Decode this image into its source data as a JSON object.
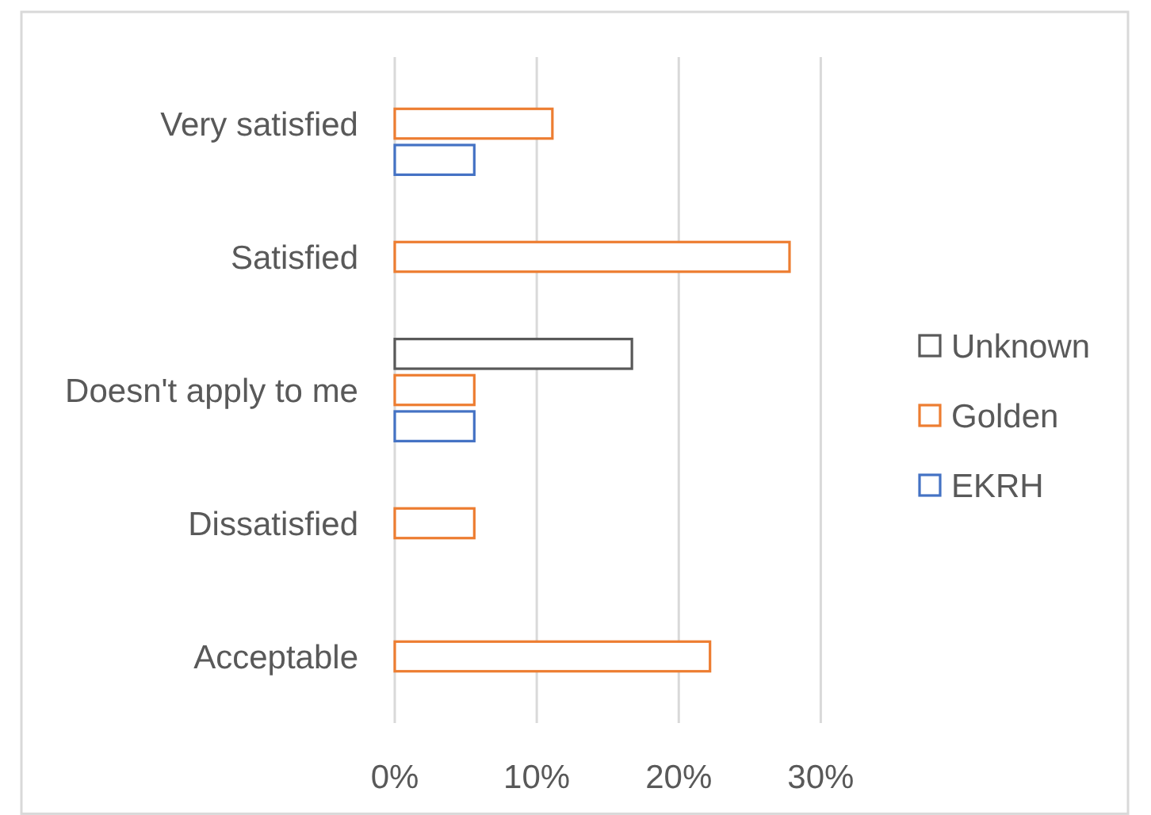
{
  "chart_data": {
    "type": "bar",
    "orientation": "horizontal",
    "categories": [
      "Very satisfied",
      "Satisfied",
      "Doesn't apply to me",
      "Dissatisfied",
      "Acceptable"
    ],
    "series": [
      {
        "name": "Unknown",
        "color": "#595959",
        "values": [
          null,
          null,
          16.7,
          null,
          null
        ]
      },
      {
        "name": "Golden",
        "color": "#ed7d31",
        "values": [
          11.1,
          27.8,
          5.6,
          5.6,
          22.2
        ]
      },
      {
        "name": "EKRH",
        "color": "#4472c4",
        "values": [
          5.6,
          null,
          5.6,
          null,
          null
        ]
      }
    ],
    "xlim": [
      0,
      30
    ],
    "xticks": [
      {
        "value": 0,
        "label": "0%"
      },
      {
        "value": 10,
        "label": "10%"
      },
      {
        "value": 20,
        "label": "20%"
      },
      {
        "value": 30,
        "label": "30%"
      }
    ],
    "grid": "x",
    "legend": "right"
  }
}
